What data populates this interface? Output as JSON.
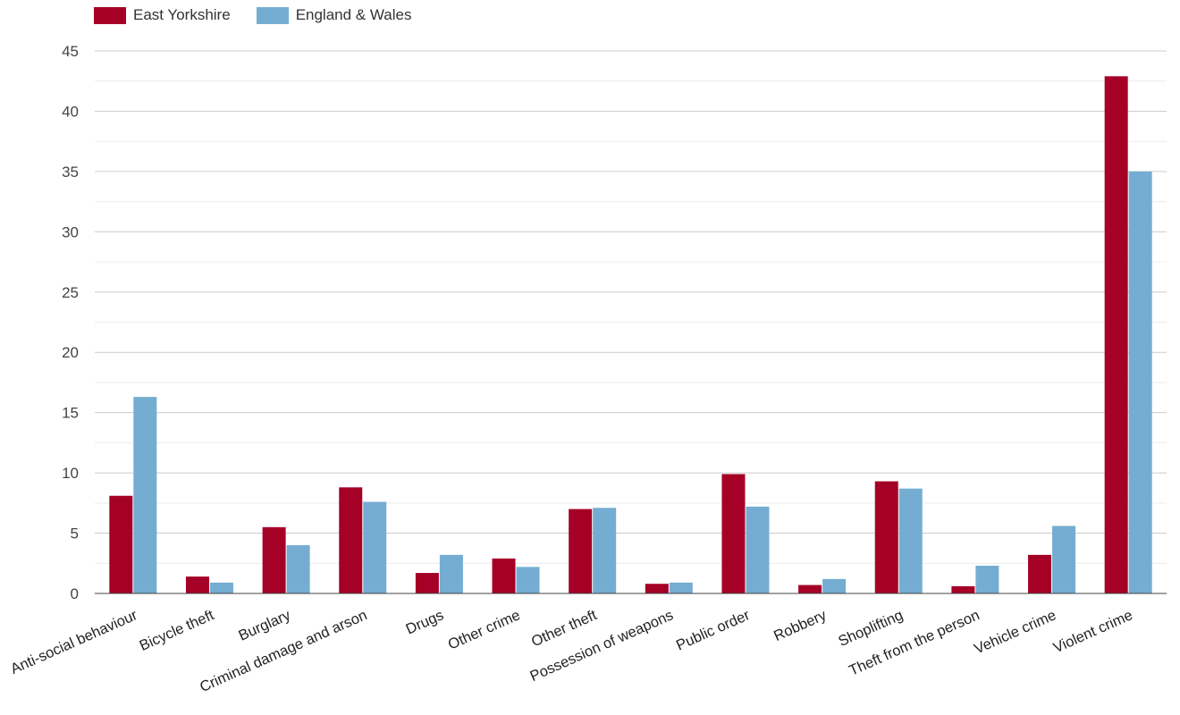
{
  "chart_data": {
    "type": "bar",
    "title": "",
    "xlabel": "",
    "ylabel": "",
    "ylim": [
      0,
      45
    ],
    "yticks": [
      0,
      5,
      10,
      15,
      20,
      25,
      30,
      35,
      40,
      45
    ],
    "grid": true,
    "legend_position": "top-left",
    "categories": [
      "Anti-social behaviour",
      "Bicycle theft",
      "Burglary",
      "Criminal damage and arson",
      "Drugs",
      "Other crime",
      "Other theft",
      "Possession of weapons",
      "Public order",
      "Robbery",
      "Shoplifting",
      "Theft from the person",
      "Vehicle crime",
      "Violent crime"
    ],
    "series": [
      {
        "name": "East Yorkshire",
        "color": "#a50026",
        "values": [
          8.1,
          1.4,
          5.5,
          8.8,
          1.7,
          2.9,
          7.0,
          0.8,
          9.9,
          0.7,
          9.3,
          0.6,
          3.2,
          42.9
        ]
      },
      {
        "name": "England & Wales",
        "color": "#74add1",
        "values": [
          16.3,
          0.9,
          4.0,
          7.6,
          3.2,
          2.2,
          7.1,
          0.9,
          7.2,
          1.2,
          8.7,
          2.3,
          5.6,
          35.0
        ]
      }
    ]
  }
}
